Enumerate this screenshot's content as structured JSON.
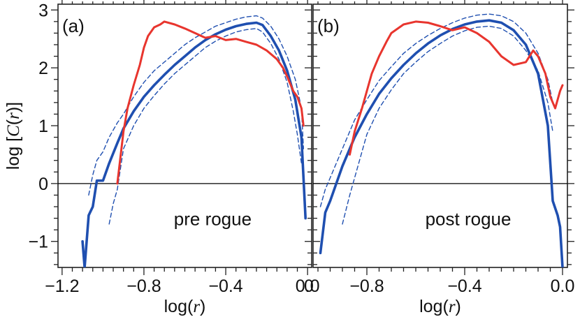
{
  "chart_data": [
    {
      "type": "line",
      "panel_label": "(a)",
      "annotation": "pre rogue",
      "xlabel": "log(r)",
      "ylabel": "log [C(r)]",
      "xlim": [
        -1.22,
        0.02
      ],
      "ylim": [
        -1.45,
        3.1
      ],
      "xticks": [
        -1.2,
        -0.8,
        -0.4,
        0.0
      ],
      "xtick_labels": [
        "−1.2",
        "−0.8",
        "−0.4",
        "0.0"
      ],
      "yticks": [
        -1,
        0,
        1,
        2,
        3
      ],
      "ytick_labels": [
        "−1",
        "0",
        "1",
        "2",
        "3"
      ],
      "hline": 0,
      "series": [
        {
          "style": "thick-blue",
          "color": "#1f4fb0",
          "x": [
            -1.1,
            -1.09,
            -1.07,
            -1.05,
            -1.03,
            -1.0,
            -0.97,
            -0.93,
            -0.9,
            -0.85,
            -0.8,
            -0.75,
            -0.7,
            -0.65,
            -0.6,
            -0.55,
            -0.5,
            -0.45,
            -0.4,
            -0.35,
            -0.3,
            -0.25,
            -0.22,
            -0.18,
            -0.14,
            -0.1,
            -0.06,
            -0.03,
            -0.02,
            -0.01
          ],
          "y": [
            -1.0,
            -1.45,
            -0.55,
            -0.4,
            0.05,
            0.05,
            0.35,
            0.7,
            0.95,
            1.25,
            1.5,
            1.7,
            1.88,
            2.05,
            2.2,
            2.35,
            2.48,
            2.58,
            2.66,
            2.72,
            2.76,
            2.78,
            2.74,
            2.55,
            2.3,
            1.95,
            1.45,
            0.8,
            0.1,
            -0.6
          ]
        },
        {
          "style": "dashed-blue-upper",
          "color": "#1f4fb0",
          "x": [
            -1.07,
            -1.05,
            -1.03,
            -1.0,
            -0.97,
            -0.93,
            -0.9,
            -0.85,
            -0.8,
            -0.75,
            -0.7,
            -0.65,
            -0.6,
            -0.55,
            -0.5,
            -0.45,
            -0.4,
            -0.35,
            -0.3,
            -0.25,
            -0.22,
            -0.18,
            -0.14,
            -0.1,
            -0.06,
            -0.03,
            -0.02
          ],
          "y": [
            -0.2,
            0.15,
            0.4,
            0.55,
            0.8,
            1.05,
            1.2,
            1.5,
            1.75,
            1.95,
            2.1,
            2.25,
            2.4,
            2.52,
            2.62,
            2.72,
            2.78,
            2.84,
            2.88,
            2.9,
            2.86,
            2.72,
            2.5,
            2.2,
            1.8,
            1.3,
            0.6
          ]
        },
        {
          "style": "dashed-blue-lower",
          "color": "#1f4fb0",
          "x": [
            -0.97,
            -0.95,
            -0.93,
            -0.9,
            -0.85,
            -0.8,
            -0.75,
            -0.7,
            -0.65,
            -0.6,
            -0.55,
            -0.5,
            -0.45,
            -0.4,
            -0.35,
            -0.3,
            -0.25,
            -0.22,
            -0.18,
            -0.14,
            -0.1,
            -0.07,
            -0.05,
            -0.03
          ],
          "y": [
            -0.7,
            -0.35,
            -0.1,
            0.6,
            1.0,
            1.3,
            1.52,
            1.72,
            1.9,
            2.05,
            2.2,
            2.35,
            2.46,
            2.55,
            2.62,
            2.66,
            2.68,
            2.62,
            2.42,
            2.15,
            1.75,
            1.25,
            0.85,
            0.35
          ]
        },
        {
          "style": "red",
          "color": "#e8352e",
          "x": [
            -0.93,
            -0.9,
            -0.88,
            -0.85,
            -0.82,
            -0.8,
            -0.78,
            -0.75,
            -0.72,
            -0.7,
            -0.65,
            -0.6,
            -0.55,
            -0.5,
            -0.45,
            -0.4,
            -0.35,
            -0.3,
            -0.25,
            -0.2,
            -0.15,
            -0.12,
            -0.1,
            -0.07,
            -0.05,
            -0.03,
            -0.02
          ],
          "y": [
            0.0,
            0.9,
            1.3,
            1.7,
            2.05,
            2.35,
            2.55,
            2.7,
            2.75,
            2.8,
            2.75,
            2.68,
            2.6,
            2.52,
            2.55,
            2.48,
            2.5,
            2.45,
            2.4,
            2.3,
            2.15,
            2.0,
            1.85,
            1.6,
            1.5,
            1.3,
            1.0
          ]
        }
      ]
    },
    {
      "type": "line",
      "panel_label": "(b)",
      "annotation": "post rogue",
      "xlabel": "log(r)",
      "xlim": [
        -1.02,
        0.02
      ],
      "ylim": [
        -1.45,
        3.1
      ],
      "xticks": [
        -0.8,
        -0.4,
        0.0
      ],
      "xtick_labels": [
        "−0.8",
        "−0.4",
        "0.0"
      ],
      "left_corner_label": "0",
      "hline": 0,
      "series": [
        {
          "style": "thick-blue",
          "color": "#1f4fb0",
          "x": [
            -0.99,
            -0.97,
            -0.95,
            -0.9,
            -0.85,
            -0.8,
            -0.75,
            -0.7,
            -0.65,
            -0.6,
            -0.55,
            -0.5,
            -0.45,
            -0.4,
            -0.35,
            -0.3,
            -0.25,
            -0.2,
            -0.15,
            -0.1,
            -0.06,
            -0.04,
            -0.02,
            -0.01,
            0.0
          ],
          "y": [
            -1.2,
            -0.5,
            -0.3,
            0.3,
            0.8,
            1.2,
            1.55,
            1.82,
            2.05,
            2.25,
            2.42,
            2.56,
            2.67,
            2.75,
            2.8,
            2.82,
            2.78,
            2.65,
            2.4,
            1.9,
            1.0,
            -0.3,
            -0.55,
            -0.75,
            -1.45
          ]
        },
        {
          "style": "dashed-blue-upper",
          "color": "#1f4fb0",
          "x": [
            -0.99,
            -0.97,
            -0.95,
            -0.9,
            -0.85,
            -0.8,
            -0.75,
            -0.7,
            -0.65,
            -0.6,
            -0.55,
            -0.5,
            -0.45,
            -0.4,
            -0.35,
            -0.3,
            -0.25,
            -0.2,
            -0.15,
            -0.1,
            -0.06,
            -0.04
          ],
          "y": [
            -0.4,
            -0.1,
            0.1,
            0.6,
            1.1,
            1.45,
            1.78,
            2.02,
            2.25,
            2.42,
            2.56,
            2.68,
            2.78,
            2.86,
            2.91,
            2.93,
            2.9,
            2.8,
            2.6,
            2.25,
            1.8,
            1.4
          ]
        },
        {
          "style": "dashed-blue-lower",
          "color": "#1f4fb0",
          "x": [
            -0.9,
            -0.87,
            -0.85,
            -0.8,
            -0.75,
            -0.7,
            -0.65,
            -0.6,
            -0.55,
            -0.5,
            -0.45,
            -0.4,
            -0.35,
            -0.3,
            -0.25,
            -0.2,
            -0.15,
            -0.1,
            -0.06,
            -0.04
          ],
          "y": [
            -0.7,
            -0.2,
            0.1,
            0.85,
            1.3,
            1.62,
            1.9,
            2.1,
            2.28,
            2.42,
            2.55,
            2.64,
            2.7,
            2.72,
            2.68,
            2.55,
            2.3,
            1.95,
            1.4,
            0.9
          ]
        },
        {
          "style": "red",
          "color": "#e8352e",
          "x": [
            -0.87,
            -0.85,
            -0.82,
            -0.8,
            -0.78,
            -0.75,
            -0.72,
            -0.7,
            -0.65,
            -0.6,
            -0.55,
            -0.5,
            -0.45,
            -0.4,
            -0.35,
            -0.3,
            -0.25,
            -0.2,
            -0.15,
            -0.12,
            -0.1,
            -0.07,
            -0.05,
            -0.03,
            -0.01,
            0.0
          ],
          "y": [
            0.5,
            0.9,
            1.3,
            1.6,
            1.9,
            2.2,
            2.45,
            2.6,
            2.75,
            2.8,
            2.78,
            2.72,
            2.65,
            2.7,
            2.6,
            2.45,
            2.2,
            2.05,
            2.1,
            2.3,
            2.2,
            1.9,
            1.5,
            1.3,
            1.6,
            1.7
          ]
        }
      ]
    }
  ]
}
